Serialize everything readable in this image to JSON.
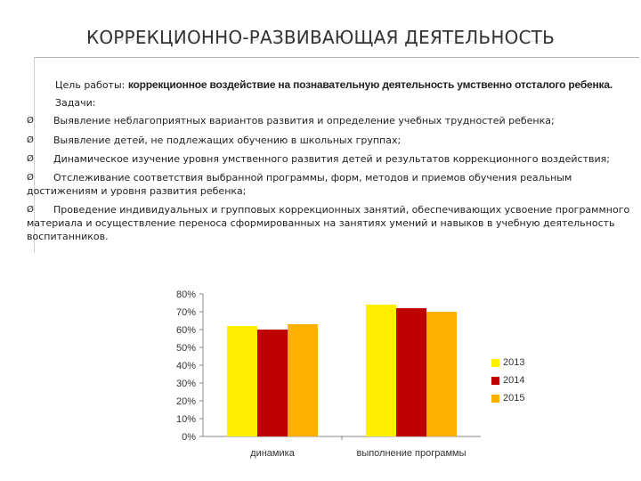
{
  "header": {
    "title": "КОРРЕКЦИОННО-РАЗВИВАЮЩАЯ  ДЕЯТЕЛЬНОСТЬ"
  },
  "goal": {
    "label": "Цель работы:",
    "text": "коррекционное воздействие на познавательную деятельность умственно отсталого ребенка."
  },
  "tasks": {
    "label": "Задачи:",
    "items": [
      "Выявление неблагоприятных вариантов развития и определение учебных трудностей ребенка;",
      "Выявление детей, не подлежащих обучению в школьных группах;",
      "Динамическое изучение уровня умственного развития детей и результатов коррекционного воздействия;",
      "Отслеживание соответствия выбранной программы, форм, методов и приемов обучения реальным достижениям и уровня развития ребенка;",
      "Проведение индивидуальных и групповых коррекционных занятий, обеспечивающих усвоение программного материала и осуществление переноса сформированных на занятиях умений и навыков в учебную деятельность воспитанников."
    ],
    "marker": "Ø"
  },
  "chart_data": {
    "type": "bar",
    "categories": [
      "динамика",
      "выполнение программы"
    ],
    "series": [
      {
        "name": "2013",
        "values": [
          0.62,
          0.74
        ],
        "color": "#ffee00"
      },
      {
        "name": "2014",
        "values": [
          0.6,
          0.72
        ],
        "color": "#c00000"
      },
      {
        "name": "2015",
        "values": [
          0.63,
          0.7
        ],
        "color": "#ffb000"
      }
    ],
    "ylim": [
      0,
      0.8
    ],
    "yticks": [
      "0%",
      "10%",
      "20%",
      "30%",
      "40%",
      "50%",
      "60%",
      "70%",
      "80%"
    ],
    "grid": false,
    "legend": "right"
  }
}
